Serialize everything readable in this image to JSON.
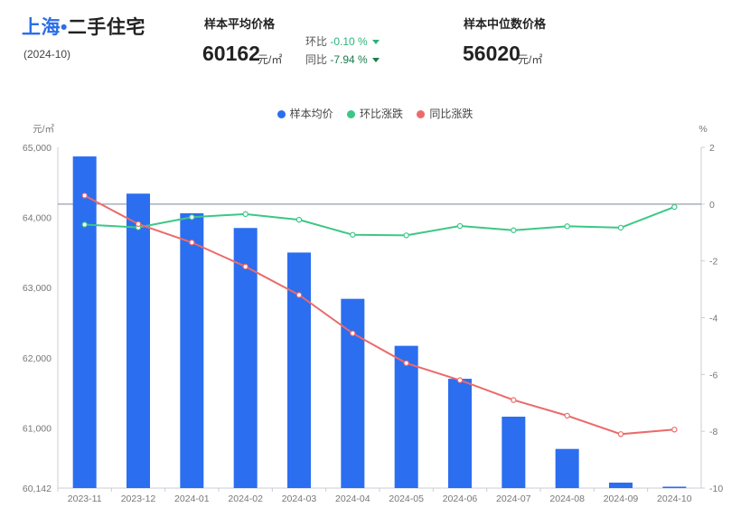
{
  "header": {
    "city": "上海",
    "separator": "•",
    "category": "二手住宅",
    "period": "(2024-10)"
  },
  "avg_price": {
    "label": "样本平均价格",
    "value": "60162",
    "unit": "元/㎡",
    "mom_label": "环比",
    "mom_value": "-0.10 %",
    "yoy_label": "同比",
    "yoy_value": "-7.94 %"
  },
  "median_price": {
    "label": "样本中位数价格",
    "value": "56020",
    "unit": "元/㎡"
  },
  "colors": {
    "bar": "#2b6ef0",
    "mom_line": "#3cc787",
    "yoy_line": "#ec6a6a",
    "accent": "#2a6ee8"
  },
  "chart_data": {
    "type": "bar",
    "categories": [
      "2023-11",
      "2023-12",
      "2024-01",
      "2024-02",
      "2024-03",
      "2024-04",
      "2024-05",
      "2024-06",
      "2024-07",
      "2024-08",
      "2024-09",
      "2024-10"
    ],
    "left_axis": {
      "unit": "元/㎡",
      "min": 60142,
      "max": 65000,
      "ticks": [
        60142,
        61000,
        62000,
        63000,
        64000,
        65000
      ],
      "tick_labels": [
        "60,142",
        "61,000",
        "62,000",
        "63,000",
        "64,000",
        "65,000"
      ]
    },
    "right_axis": {
      "unit": "%",
      "min": -10,
      "max": 2,
      "ticks": [
        -10,
        -8,
        -6,
        -4,
        -2,
        0,
        2
      ],
      "tick_labels": [
        "-10",
        "-8",
        "-6",
        "-4",
        "-2",
        "0",
        "2"
      ]
    },
    "legend_position": "top-center",
    "series": [
      {
        "name": "样本均价",
        "type": "bar",
        "axis": "left",
        "values": [
          64870,
          64340,
          64060,
          63850,
          63500,
          62840,
          62170,
          61700,
          61160,
          60700,
          60220,
          60162
        ]
      },
      {
        "name": "环比涨跌",
        "type": "line",
        "axis": "right",
        "values": [
          -0.72,
          -0.82,
          -0.46,
          -0.35,
          -0.55,
          -1.08,
          -1.1,
          -0.77,
          -0.92,
          -0.78,
          -0.83,
          -0.1
        ]
      },
      {
        "name": "同比涨跌",
        "type": "line",
        "axis": "right",
        "values": [
          0.3,
          -0.7,
          -1.35,
          -2.2,
          -3.2,
          -4.55,
          -5.6,
          -6.2,
          -6.9,
          -7.45,
          -8.1,
          -7.94
        ]
      }
    ]
  }
}
